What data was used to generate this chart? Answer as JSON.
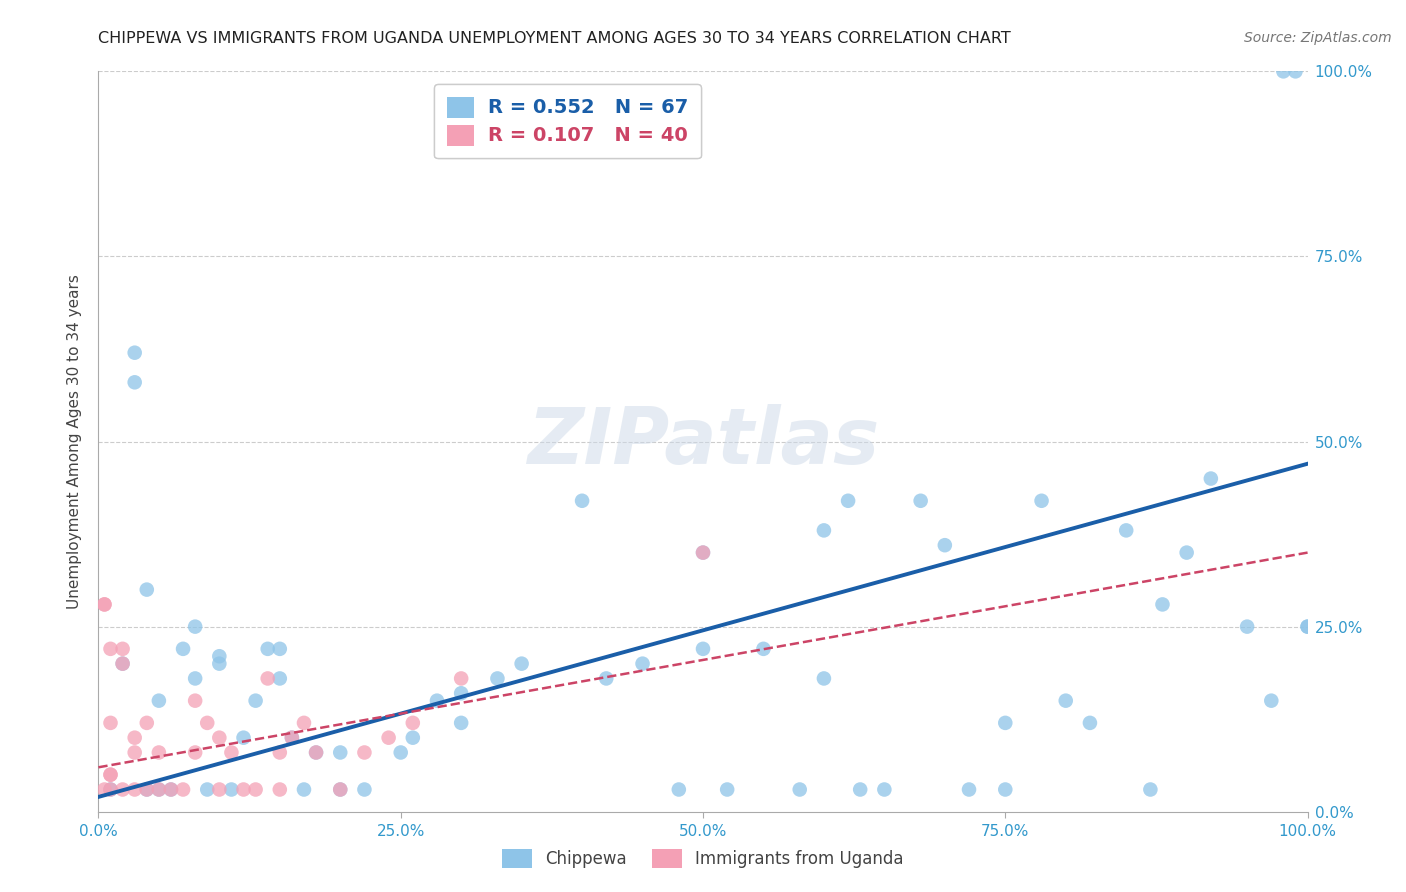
{
  "title": "CHIPPEWA VS IMMIGRANTS FROM UGANDA UNEMPLOYMENT AMONG AGES 30 TO 34 YEARS CORRELATION CHART",
  "source_text": "Source: ZipAtlas.com",
  "ylabel": "Unemployment Among Ages 30 to 34 years",
  "xlim": [
    0.0,
    1.0
  ],
  "ylim": [
    0.0,
    1.0
  ],
  "chippewa_R": 0.552,
  "chippewa_N": 67,
  "uganda_R": 0.107,
  "uganda_N": 40,
  "legend_label1": "Chippewa",
  "legend_label2": "Immigrants from Uganda",
  "dot_color_blue": "#8ec4e8",
  "dot_color_pink": "#f4a0b5",
  "line_color_blue": "#1a5ea8",
  "line_color_pink": "#cc4466",
  "background_color": "#ffffff",
  "watermark": "ZIPatlas",
  "grid_color": "#cccccc",
  "chippewa_x": [
    0.01,
    0.02,
    0.03,
    0.03,
    0.04,
    0.04,
    0.05,
    0.05,
    0.06,
    0.07,
    0.08,
    0.08,
    0.09,
    0.1,
    0.1,
    0.11,
    0.12,
    0.13,
    0.14,
    0.15,
    0.15,
    0.16,
    0.17,
    0.18,
    0.2,
    0.2,
    0.22,
    0.25,
    0.26,
    0.28,
    0.3,
    0.3,
    0.33,
    0.35,
    0.4,
    0.42,
    0.45,
    0.48,
    0.5,
    0.5,
    0.52,
    0.55,
    0.58,
    0.6,
    0.6,
    0.62,
    0.63,
    0.65,
    0.68,
    0.7,
    0.72,
    0.75,
    0.75,
    0.78,
    0.8,
    0.82,
    0.85,
    0.87,
    0.88,
    0.9,
    0.92,
    0.95,
    0.97,
    0.98,
    0.99,
    1.0,
    1.0
  ],
  "chippewa_y": [
    0.03,
    0.2,
    0.62,
    0.58,
    0.03,
    0.3,
    0.15,
    0.03,
    0.03,
    0.22,
    0.18,
    0.25,
    0.03,
    0.2,
    0.21,
    0.03,
    0.1,
    0.15,
    0.22,
    0.22,
    0.18,
    0.1,
    0.03,
    0.08,
    0.03,
    0.08,
    0.03,
    0.08,
    0.1,
    0.15,
    0.12,
    0.16,
    0.18,
    0.2,
    0.42,
    0.18,
    0.2,
    0.03,
    0.35,
    0.22,
    0.03,
    0.22,
    0.03,
    0.18,
    0.38,
    0.42,
    0.03,
    0.03,
    0.42,
    0.36,
    0.03,
    0.03,
    0.12,
    0.42,
    0.15,
    0.12,
    0.38,
    0.03,
    0.28,
    0.35,
    0.45,
    0.25,
    0.15,
    1.0,
    1.0,
    0.25,
    0.25
  ],
  "uganda_x": [
    0.005,
    0.005,
    0.005,
    0.01,
    0.01,
    0.01,
    0.01,
    0.01,
    0.02,
    0.02,
    0.02,
    0.03,
    0.03,
    0.03,
    0.04,
    0.04,
    0.05,
    0.05,
    0.06,
    0.07,
    0.08,
    0.08,
    0.09,
    0.1,
    0.1,
    0.11,
    0.12,
    0.13,
    0.14,
    0.15,
    0.15,
    0.16,
    0.17,
    0.18,
    0.2,
    0.22,
    0.24,
    0.26,
    0.3,
    0.5
  ],
  "uganda_y": [
    0.03,
    0.28,
    0.28,
    0.05,
    0.22,
    0.05,
    0.12,
    0.03,
    0.2,
    0.22,
    0.03,
    0.1,
    0.08,
    0.03,
    0.12,
    0.03,
    0.08,
    0.03,
    0.03,
    0.03,
    0.08,
    0.15,
    0.12,
    0.1,
    0.03,
    0.08,
    0.03,
    0.03,
    0.18,
    0.08,
    0.03,
    0.1,
    0.12,
    0.08,
    0.03,
    0.08,
    0.1,
    0.12,
    0.18,
    0.35
  ],
  "blue_line_x0": 0.0,
  "blue_line_y0": 0.02,
  "blue_line_x1": 1.0,
  "blue_line_y1": 0.47,
  "pink_line_x0": 0.0,
  "pink_line_y0": 0.06,
  "pink_line_x1": 1.0,
  "pink_line_y1": 0.35
}
